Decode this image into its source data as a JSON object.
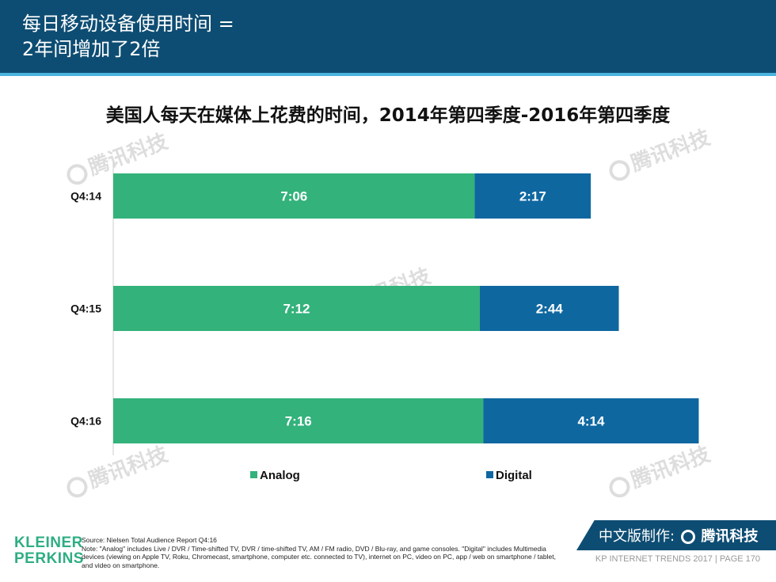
{
  "header": {
    "title_line1": "每日移动设备使用时间 =",
    "title_line2": "2年间增加了2倍"
  },
  "chart_data": {
    "type": "bar",
    "orientation": "horizontal",
    "stacked": true,
    "title": "美国人每天在媒体上花费的时间，2014年第四季度-2016年第四季度",
    "unit": "hours:minutes",
    "categories": [
      "Q4:14",
      "Q4:15",
      "Q4:16"
    ],
    "series": [
      {
        "name": "Analog",
        "color": "#33b27b",
        "values": [
          7.1,
          7.2,
          7.27
        ],
        "labels": [
          "7:06",
          "7:12",
          "7:16"
        ]
      },
      {
        "name": "Digital",
        "color": "#0f67a0",
        "values": [
          2.28,
          2.73,
          4.23
        ],
        "labels": [
          "2:17",
          "2:44",
          "4:14"
        ]
      }
    ],
    "legend_position": "bottom",
    "grid": false
  },
  "watermark": {
    "text": "腾讯科技"
  },
  "logo": {
    "line1": "KLEINER",
    "line2": "PERKINS"
  },
  "source": {
    "line1": "Source: Nielsen Total Audience Report Q4:16",
    "note": "Note: \"Analog\" includes Live / DVR / Time-shifted TV, DVR / time-shifted TV, AM / FM radio, DVD / Blu-ray, and game consoles. \"Digital\" includes Multimedia devices (viewing on Apple TV, Roku, Chromecast, smartphone, computer etc. connected to TV), internet on PC, video on PC, app / web on smartphone / tablet, and video on smartphone."
  },
  "brand": {
    "prefix": "中文版制作:",
    "name": "腾讯科技"
  },
  "footer": {
    "text": "KP INTERNET TRENDS 2017  |  PAGE 170"
  }
}
